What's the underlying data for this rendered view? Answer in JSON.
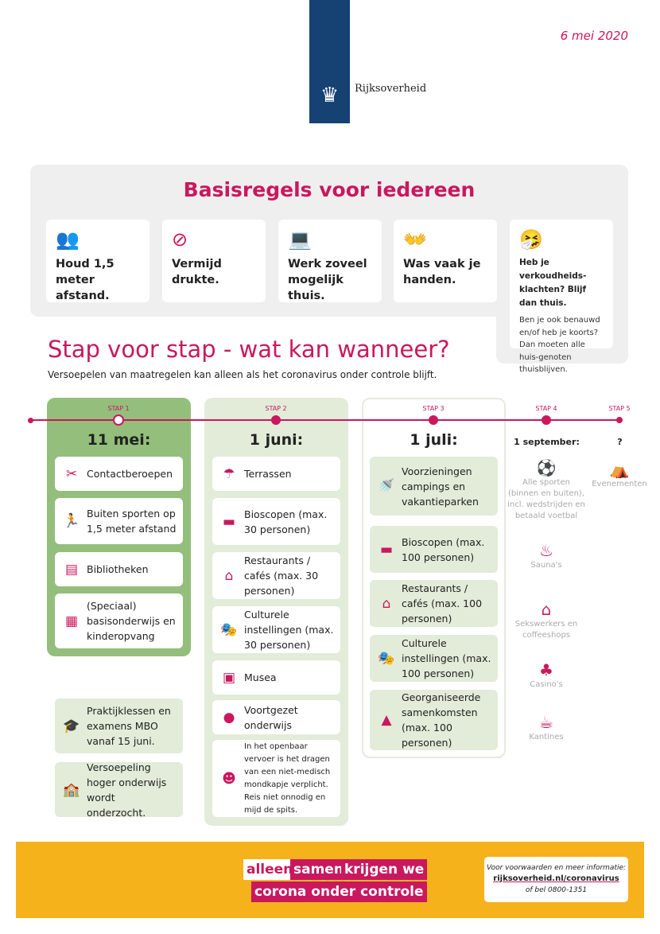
{
  "header": {
    "brand": "Rijksoverheid",
    "date": "6 mei 2020",
    "colors": {
      "brand_blue": "#154273",
      "accent": "#c9185e",
      "footer": "#f6b21b"
    }
  },
  "rules": {
    "title": "Basisregels voor iedereen",
    "cards": [
      {
        "icon": "distance-icon",
        "text": "Houd 1,5 meter afstand."
      },
      {
        "icon": "no-crowd-icon",
        "text": "Vermijd drukte."
      },
      {
        "icon": "laptop-icon",
        "text": "Werk zoveel mogelijk thuis."
      },
      {
        "icon": "wash-hands-icon",
        "text": "Was vaak je handen."
      },
      {
        "icon": "sneeze-icon",
        "text": "Heb je verkoudheids-klachten? Blijf dan thuis.",
        "sub": "Ben je ook benauwd en/of heb je koorts? Dan moeten alle huis-genoten thuisblijven."
      }
    ]
  },
  "steps": {
    "title": "Stap voor stap - wat kan wanneer?",
    "subtitle": "Versoepelen van maatregelen kan alleen als het coronavirus onder controle blijft.",
    "stap1": {
      "label": "STAP 1",
      "date": "11 mei:",
      "items": [
        {
          "icon": "hairdresser-icon",
          "text": "Contactberoepen"
        },
        {
          "icon": "running-icon",
          "text": "Buiten sporten op 1,5 meter afstand"
        },
        {
          "icon": "books-icon",
          "text": "Bibliotheken"
        },
        {
          "icon": "blackboard-icon",
          "text": "(Speciaal) basisonderwijs en kinderopvang"
        }
      ],
      "extra": [
        {
          "icon": "graduation-cap-icon",
          "text": "Praktijklessen en examens MBO vanaf 15 juni."
        },
        {
          "icon": "school-building-icon",
          "text": "Versoepeling hoger onderwijs wordt onderzocht."
        }
      ]
    },
    "stap2": {
      "label": "STAP 2",
      "date": "1 juni:",
      "items": [
        {
          "icon": "terrace-icon",
          "text": "Terrassen"
        },
        {
          "icon": "cinema-icon",
          "text": "Bioscopen (max. 30 personen)"
        },
        {
          "icon": "restaurant-icon",
          "text": "Restaurants / cafés (max. 30 personen)"
        },
        {
          "icon": "theater-masks-icon",
          "text": "Culturele instellingen (max. 30 personen)"
        },
        {
          "icon": "museum-icon",
          "text": "Musea"
        },
        {
          "icon": "backpack-icon",
          "text": "Voortgezet onderwijs"
        },
        {
          "icon": "face-mask-icon",
          "text": "In het openbaar vervoer is het dragen van een niet-medisch mondkapje verplicht. Reis niet onnodig en mijd de spits."
        }
      ]
    },
    "stap3": {
      "label": "STAP 3",
      "date": "1 juli:",
      "items": [
        {
          "icon": "shower-icon",
          "text": "Voorzieningen campings en vakantieparken"
        },
        {
          "icon": "cinema-icon",
          "text": "Bioscopen (max. 100 personen)"
        },
        {
          "icon": "restaurant-icon",
          "text": "Restaurants / cafés (max. 100 personen)"
        },
        {
          "icon": "theater-masks-icon",
          "text": "Culturele instellingen (max. 100 personen)"
        },
        {
          "icon": "gathering-icon",
          "text": "Georganiseerde samenkomsten (max. 100 personen)"
        }
      ]
    },
    "stap4": {
      "label": "STAP 4",
      "date": "1 september:",
      "items": [
        {
          "icon": "football-icon",
          "text": "Alle sporten (binnen en buiten), incl. wedstrijden en betaald voetbal"
        },
        {
          "icon": "sauna-icon",
          "text": "Sauna's"
        },
        {
          "icon": "adult-18-icon",
          "text": "Sekswerkers en coffeeshops"
        },
        {
          "icon": "playing-cards-icon",
          "text": "Casino's"
        },
        {
          "icon": "coffee-cup-icon",
          "text": "Kantines"
        }
      ]
    },
    "stap5": {
      "label": "STAP 5",
      "date": "?",
      "items": [
        {
          "icon": "circus-tent-icon",
          "text": "Evenementen"
        }
      ]
    }
  },
  "footer": {
    "slogan": [
      "alleen",
      "samen",
      "krijgen we",
      "corona onder controle"
    ],
    "info_intro": "Voor voorwaarden en meer informatie:",
    "info_link": "rijksoverheid.nl/coronavirus",
    "info_phone": "of bel 0800-1351"
  }
}
